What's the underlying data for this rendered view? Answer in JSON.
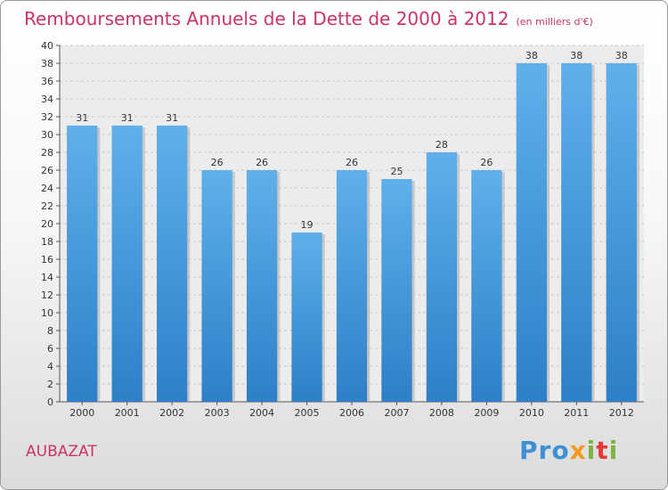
{
  "title": "Remboursements Annuels de la Dette de 2000 à 2012",
  "subtitle": "(en milliers d'€)",
  "commune": "AUBAZAT",
  "logo": {
    "text": "Proxiti",
    "colors": [
      "#3d8fd6",
      "#f29a1c",
      "#7cb342",
      "#e53935"
    ]
  },
  "chart_data": {
    "type": "bar",
    "title": "Remboursements Annuels de la Dette de 2000 à 2012",
    "xlabel": "",
    "ylabel": "",
    "categories": [
      "2000",
      "2001",
      "2002",
      "2003",
      "2004",
      "2005",
      "2006",
      "2007",
      "2008",
      "2009",
      "2010",
      "2011",
      "2012"
    ],
    "values": [
      31,
      31,
      31,
      26,
      26,
      19,
      26,
      25,
      28,
      26,
      38,
      38,
      38
    ],
    "ylim": [
      0,
      40
    ],
    "ytick_step": 2,
    "grid": true,
    "bar_color": "#4a9de0",
    "grid_color": "#c8c8c8"
  }
}
